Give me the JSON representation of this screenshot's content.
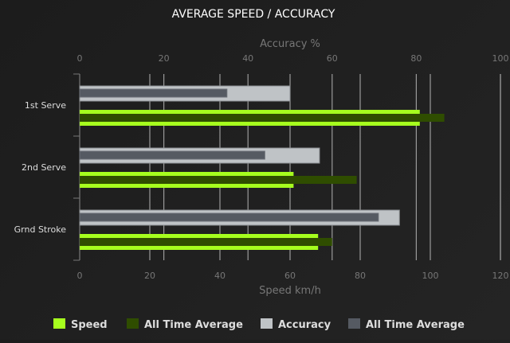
{
  "chart_data": {
    "type": "bar",
    "orientation": "horizontal",
    "title": "AVERAGE SPEED / ACCURACY",
    "categories": [
      "1st Serve",
      "2nd Serve",
      "Grnd Stroke"
    ],
    "top_axis": {
      "label": "Accuracy %",
      "range": [
        0,
        100
      ],
      "ticks": [
        0,
        20,
        40,
        60,
        80,
        100
      ]
    },
    "bottom_axis": {
      "label": "Speed km/h",
      "range": [
        0,
        120
      ],
      "ticks": [
        0,
        20,
        40,
        60,
        80,
        100,
        120
      ]
    },
    "grid": true,
    "legend_position": "bottom",
    "series": [
      {
        "name": "Speed",
        "axis": "bottom",
        "color": "#a6ff1e",
        "values": [
          97,
          61,
          68
        ]
      },
      {
        "name": "All Time Average",
        "axis": "bottom",
        "color": "#2f4d00",
        "values": [
          104,
          79,
          72
        ]
      },
      {
        "name": "Accuracy",
        "axis": "top",
        "color": "#bfc3c6",
        "values": [
          50,
          57,
          76
        ]
      },
      {
        "name": "All Time Average",
        "axis": "top",
        "color": "#555a62",
        "values": [
          35,
          44,
          71
        ]
      }
    ]
  }
}
